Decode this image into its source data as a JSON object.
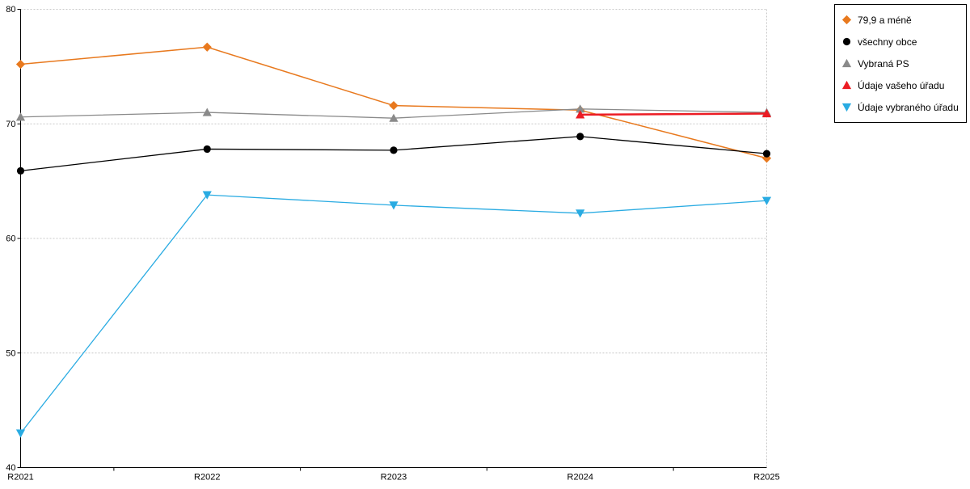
{
  "chart_data": {
    "type": "line",
    "title": "",
    "xlabel": "",
    "ylabel": "",
    "categories": [
      "R2021",
      "R2022",
      "R2023",
      "R2024",
      "R2025"
    ],
    "ylim": [
      40,
      80
    ],
    "yticks": [
      40,
      50,
      60,
      70,
      80
    ],
    "grid": true,
    "grid_color": "#c8c8c8",
    "axis_color": "#000000",
    "legend_position": "top-right-outside",
    "series": [
      {
        "name": "79,9 a méně",
        "color": "#E8791E",
        "marker": "diamond",
        "line_width": 1.5,
        "values": [
          75.2,
          76.7,
          71.6,
          71.2,
          67.0
        ]
      },
      {
        "name": "všechny obce",
        "color": "#000000",
        "marker": "circle",
        "line_width": 1.3,
        "values": [
          65.9,
          67.8,
          67.7,
          68.9,
          67.4
        ]
      },
      {
        "name": "Vybraná PS",
        "color": "#8A8A8A",
        "marker": "triangle-up",
        "line_width": 1.3,
        "values": [
          70.6,
          71.0,
          70.5,
          71.3,
          71.0
        ]
      },
      {
        "name": "Údaje vašeho úřadu",
        "color": "#EC1C24",
        "marker": "triangle-up",
        "line_width": 2.5,
        "values": [
          null,
          null,
          null,
          70.8,
          70.9
        ]
      },
      {
        "name": "Údaje vybraného úřadu",
        "color": "#29ABE2",
        "marker": "triangle-down",
        "line_width": 1.3,
        "values": [
          43.0,
          63.8,
          62.9,
          62.2,
          63.3
        ]
      }
    ]
  }
}
